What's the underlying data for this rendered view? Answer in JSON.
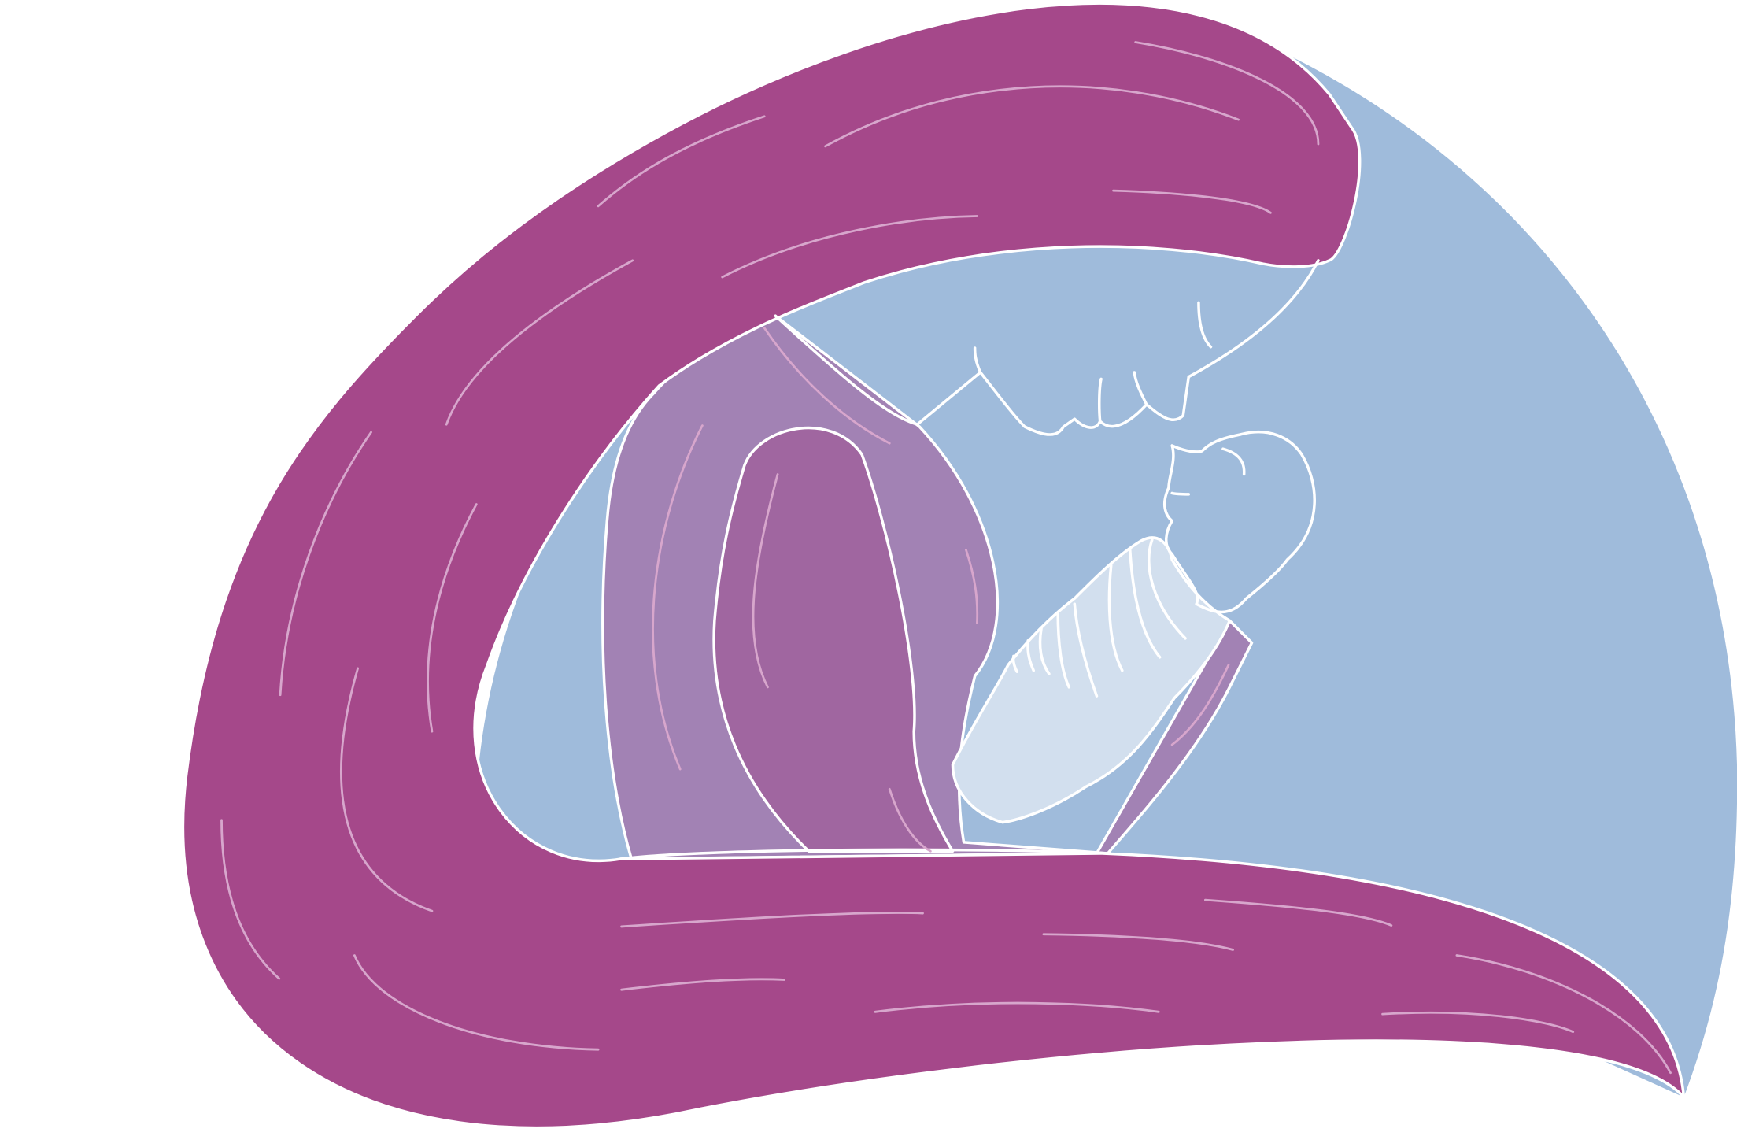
{
  "illustration": {
    "colors": {
      "background": "#ffffff",
      "blue_shape": "#9fbbdb",
      "outer_magenta": "#a5488a",
      "inner_purple": "#a282b4",
      "middle_purple": "#a066a0",
      "pale_blue": "#d2dfee",
      "outline": "#ffffff",
      "texture": "#d7a6cc"
    },
    "layers": [
      "blue-background-shape",
      "outer-magenta-shape",
      "inner-purple-shape",
      "middle-purple-shape",
      "ribbed-pale-shape",
      "white-outline-details"
    ]
  }
}
